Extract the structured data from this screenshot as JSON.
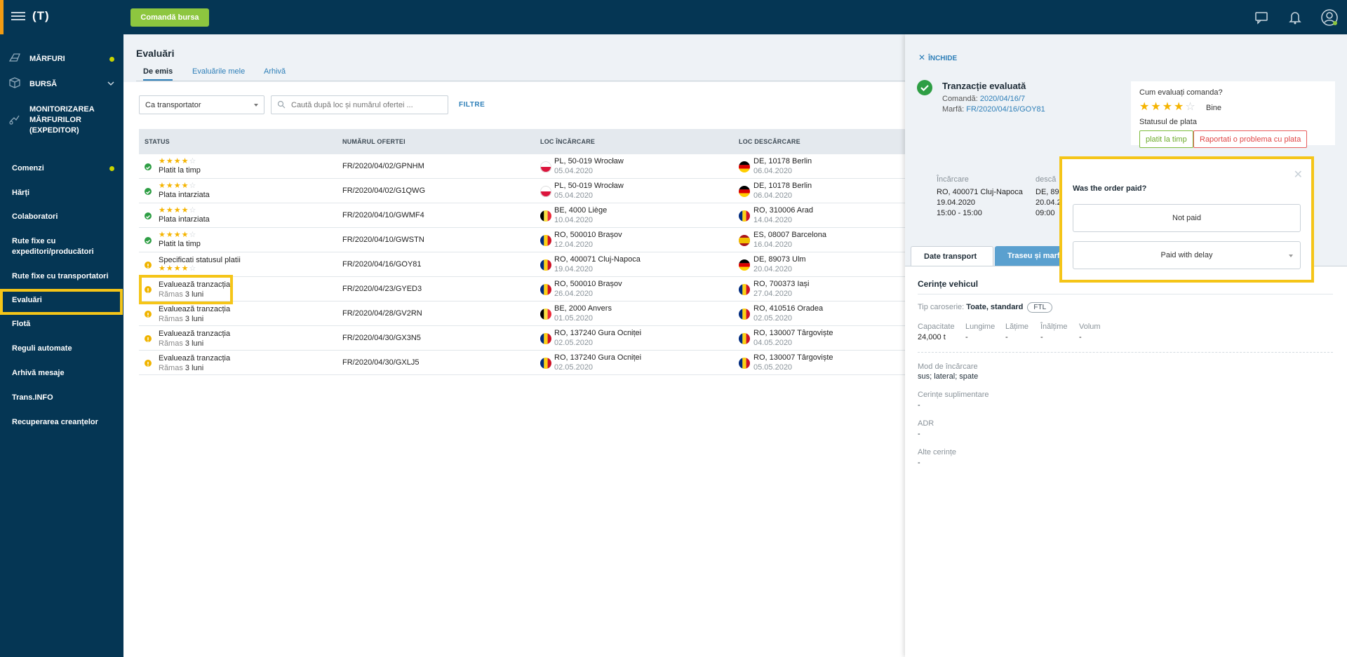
{
  "topbar": {
    "logo": "(T)",
    "bursa_button": "Comandă bursa"
  },
  "sidebar": {
    "top_items": [
      {
        "label": "MĂRFURI",
        "icon": "cargo-icon"
      },
      {
        "label": "BURSĂ",
        "icon": "box-icon"
      },
      {
        "label": "MONITORIZAREA MĂRFURILOR (EXPEDITOR)",
        "icon": "tracking-icon"
      }
    ],
    "items": [
      "Comenzi",
      "Hărți",
      "Colaboratori",
      "Rute fixe cu expeditori/producători",
      "Rute fixe cu transportatori",
      "Evaluări",
      "Flotă",
      "Reguli automate",
      "Arhivă mesaje",
      "Trans.INFO",
      "Recuperarea creanțelor"
    ]
  },
  "main": {
    "title": "Evaluări",
    "tabs": [
      "De emis",
      "Evaluările mele",
      "Arhivă"
    ],
    "select_value": "Ca transportator",
    "search_placeholder": "Caută după loc și numărul ofertei ...",
    "filter_label": "FILTRE",
    "columns": [
      "STATUS",
      "NUMĂRUL OFERTEI",
      "LOC ÎNCĂRCARE",
      "LOC DESCĂRCARE"
    ],
    "rows": [
      {
        "status": "ok",
        "stars": 4,
        "text": "Platit la timp",
        "offer": "FR/2020/04/02/GPNHM",
        "load": "PL, 50-019 Wrocław",
        "load_date": "05.04.2020",
        "load_flag": "pl",
        "unload": "DE, 10178 Berlin",
        "unload_date": "06.04.2020",
        "unload_flag": "de"
      },
      {
        "status": "ok",
        "stars": 4,
        "text": "Plata intarziata",
        "offer": "FR/2020/04/02/G1QWG",
        "load": "PL, 50-019 Wrocław",
        "load_date": "05.04.2020",
        "load_flag": "pl",
        "unload": "DE, 10178 Berlin",
        "unload_date": "06.04.2020",
        "unload_flag": "de"
      },
      {
        "status": "ok",
        "stars": 4,
        "text": "Plata intarziata",
        "offer": "FR/2020/04/10/GWMF4",
        "load": "BE, 4000 Liège",
        "load_date": "10.04.2020",
        "load_flag": "be",
        "unload": "RO, 310006 Arad",
        "unload_date": "14.04.2020",
        "unload_flag": "ro"
      },
      {
        "status": "ok",
        "stars": 4,
        "text": "Platit la timp",
        "offer": "FR/2020/04/10/GWSTN",
        "load": "RO, 500010 Brașov",
        "load_date": "12.04.2020",
        "load_flag": "ro",
        "unload": "ES, 08007 Barcelona",
        "unload_date": "16.04.2020",
        "unload_flag": "es"
      },
      {
        "status": "warn",
        "stars": 4,
        "text": "Specificati statusul platii",
        "offer": "FR/2020/04/16/GOY81",
        "load": "RO, 400071 Cluj-Napoca",
        "load_date": "19.04.2020",
        "load_flag": "ro",
        "unload": "DE, 89073 Ulm",
        "unload_date": "20.04.2020",
        "unload_flag": "de"
      },
      {
        "status": "warn",
        "text": "Evaluează tranzacția",
        "remain_prefix": "Rămas",
        "remain": "3 luni",
        "offer": "FR/2020/04/23/GYED3",
        "load": "RO, 500010 Brașov",
        "load_date": "26.04.2020",
        "load_flag": "ro",
        "unload": "RO, 700373 Iași",
        "unload_date": "27.04.2020",
        "unload_flag": "ro"
      },
      {
        "status": "warn",
        "text": "Evaluează tranzacția",
        "remain_prefix": "Rămas",
        "remain": "3 luni",
        "offer": "FR/2020/04/28/GV2RN",
        "load": "BE, 2000 Anvers",
        "load_date": "01.05.2020",
        "load_flag": "be",
        "unload": "RO, 410516 Oradea",
        "unload_date": "02.05.2020",
        "unload_flag": "ro"
      },
      {
        "status": "warn",
        "text": "Evaluează tranzacția",
        "remain_prefix": "Rămas",
        "remain": "3 luni",
        "offer": "FR/2020/04/30/GX3N5",
        "load": "RO, 137240 Gura Ocniței",
        "load_date": "02.05.2020",
        "load_flag": "ro",
        "unload": "RO, 130007 Târgoviște",
        "unload_date": "04.05.2020",
        "unload_flag": "ro"
      },
      {
        "status": "warn",
        "text": "Evaluează tranzacția",
        "remain_prefix": "Rămas",
        "remain": "3 luni",
        "offer": "FR/2020/04/30/GXLJ5",
        "load": "RO, 137240 Gura Ocniței",
        "load_date": "02.05.2020",
        "load_flag": "ro",
        "unload": "RO, 130007 Târgoviște",
        "unload_date": "05.05.2020",
        "unload_flag": "ro"
      }
    ]
  },
  "panel": {
    "close_label": "ÎNCHIDE",
    "title": "Tranzacție evaluată",
    "order_label": "Comandă:",
    "order_value": "2020/04/16/7",
    "cargo_label": "Marfă:",
    "cargo_value": "FR/2020/04/16/GOY81",
    "rating_question": "Cum evaluați comanda?",
    "rating_stars": 4,
    "rating_word": "Bine",
    "payment_label": "Statusul de plata",
    "paid_on_time": "platit la timp",
    "report_problem": "Raportati o problema cu plata",
    "loading_label": "Încărcare",
    "loading_place": "RO, 400071 Cluj-Napoca",
    "loading_date": "19.04.2020",
    "loading_time": "15:00 - 15:00",
    "unloading_label": "descă",
    "unloading_place": "DE, 89",
    "unloading_date": "20.04.2",
    "unloading_time": "09:00",
    "tabs": [
      "Date transport",
      "Traseu și marfă"
    ],
    "vehicle_header": "Cerințe vehicul",
    "body_type_label": "Tip caroserie:",
    "body_type_value": "Toate, standard",
    "ftl": "FTL",
    "specs": [
      {
        "label": "Capacitate",
        "value": "24,000 t"
      },
      {
        "label": "Lungime",
        "value": "-"
      },
      {
        "label": "Lățime",
        "value": "-"
      },
      {
        "label": "Înălțime",
        "value": "-"
      },
      {
        "label": "Volum",
        "value": "-"
      }
    ],
    "loading_mode_label": "Mod de încărcare",
    "loading_mode_value": "sus; lateral; spate",
    "extra_label": "Cerințe suplimentare",
    "extra_value": "-",
    "adr_label": "ADR",
    "adr_value": "-",
    "other_label": "Alte cerințe",
    "other_value": "-"
  },
  "popup": {
    "question": "Was the order paid?",
    "not_paid": "Not paid",
    "paid_with_delay": "Paid with delay"
  },
  "colors": {
    "nav_bg": "#053654",
    "accent_green": "#8dc63f",
    "highlight": "#f5c518",
    "link": "#2e7fb8"
  }
}
